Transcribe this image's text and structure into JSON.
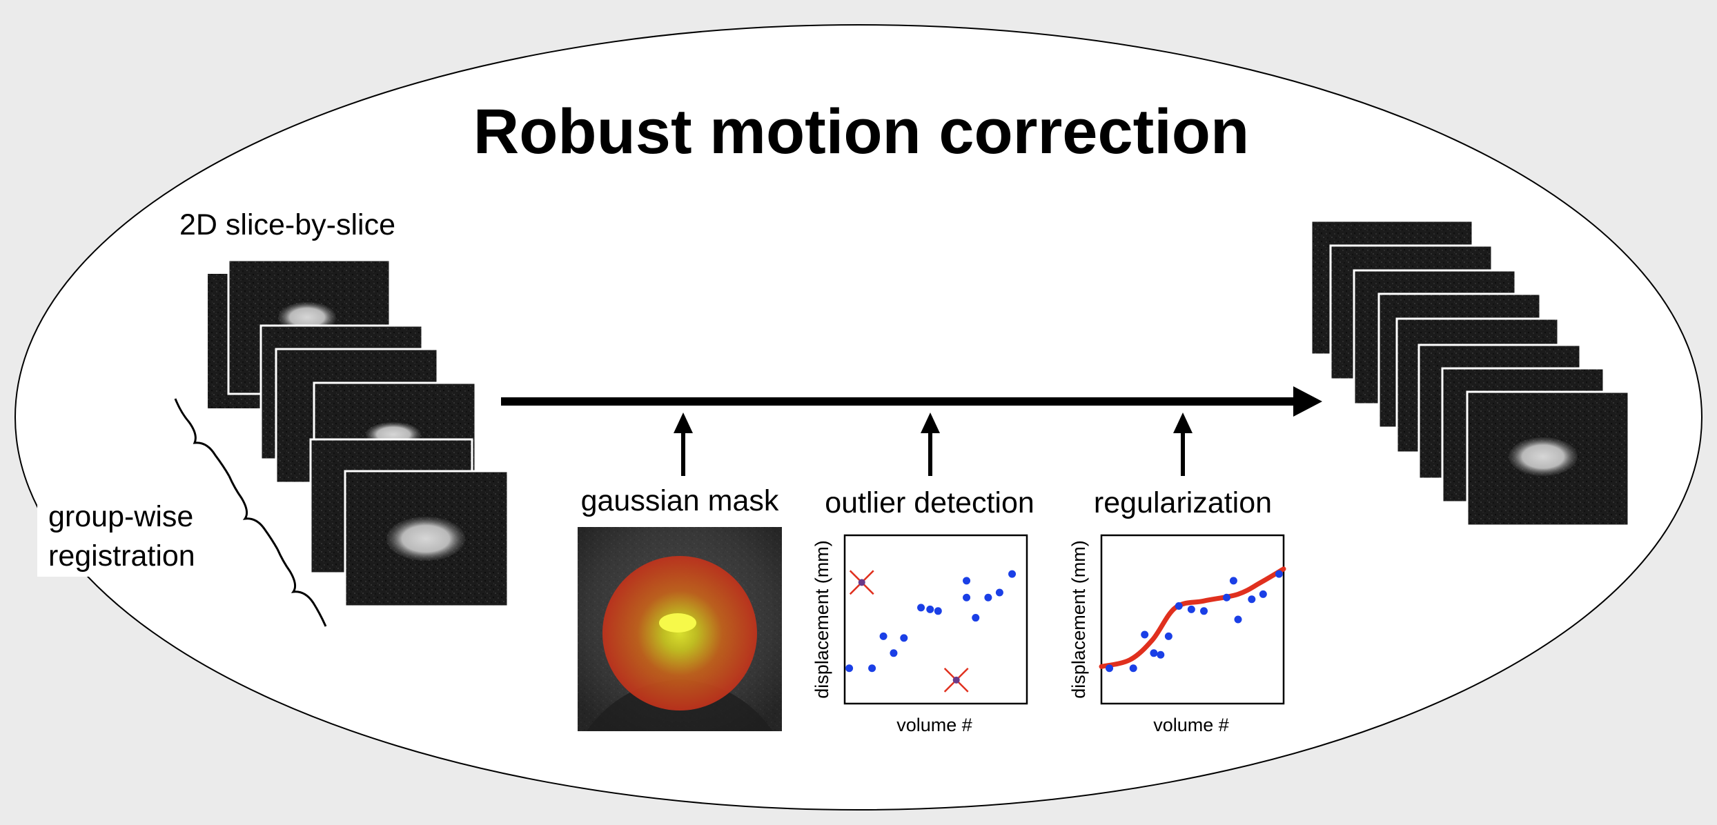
{
  "title": "Robust motion correction",
  "labels": {
    "slice_by_slice": "2D slice-by-slice",
    "group_wise_line1": "group-wise",
    "group_wise_line2": "registration"
  },
  "steps": [
    {
      "label": "gaussian mask"
    },
    {
      "label": "outlier detection",
      "xlabel": "volume #",
      "ylabel": "displacement (mm)"
    },
    {
      "label": "regularization",
      "xlabel": "volume #",
      "ylabel": "displacement (mm)"
    }
  ],
  "chart_data": [
    {
      "type": "scatter",
      "title": "outlier detection",
      "xlabel": "volume #",
      "ylabel": "displacement (mm)",
      "xlim": [
        0,
        16
      ],
      "ylim": [
        0,
        1
      ],
      "points": [
        [
          0.4,
          0.21
        ],
        [
          2.4,
          0.21
        ],
        [
          3.4,
          0.4
        ],
        [
          4.3,
          0.3
        ],
        [
          5.2,
          0.39
        ],
        [
          6.7,
          0.57
        ],
        [
          7.5,
          0.56
        ],
        [
          8.2,
          0.55
        ],
        [
          10.7,
          0.63
        ],
        [
          10.7,
          0.73
        ],
        [
          11.5,
          0.51
        ],
        [
          12.6,
          0.63
        ],
        [
          13.6,
          0.66
        ],
        [
          14.7,
          0.77
        ]
      ],
      "outliers": [
        [
          1.5,
          0.72
        ],
        [
          9.8,
          0.14
        ]
      ],
      "point_color": "#1a3fe6",
      "outlier_color": "#e0301e"
    },
    {
      "type": "line",
      "title": "regularization",
      "xlabel": "volume #",
      "ylabel": "displacement (mm)",
      "xlim": [
        0,
        16
      ],
      "ylim": [
        0,
        1
      ],
      "points": [
        [
          0.7,
          0.21
        ],
        [
          2.8,
          0.21
        ],
        [
          3.8,
          0.41
        ],
        [
          4.6,
          0.3
        ],
        [
          5.2,
          0.29
        ],
        [
          5.9,
          0.4
        ],
        [
          6.8,
          0.58
        ],
        [
          7.9,
          0.56
        ],
        [
          9.0,
          0.55
        ],
        [
          11.0,
          0.63
        ],
        [
          11.6,
          0.73
        ],
        [
          12.0,
          0.5
        ],
        [
          13.2,
          0.62
        ],
        [
          14.2,
          0.65
        ],
        [
          15.6,
          0.77
        ]
      ],
      "fit_curve": [
        [
          0.0,
          0.22
        ],
        [
          2.5,
          0.26
        ],
        [
          4.5,
          0.38
        ],
        [
          6.5,
          0.57
        ],
        [
          9.0,
          0.61
        ],
        [
          12.0,
          0.65
        ],
        [
          14.0,
          0.72
        ],
        [
          16.0,
          0.8
        ]
      ],
      "point_color": "#1a3fe6",
      "curve_color": "#e0301e"
    }
  ]
}
